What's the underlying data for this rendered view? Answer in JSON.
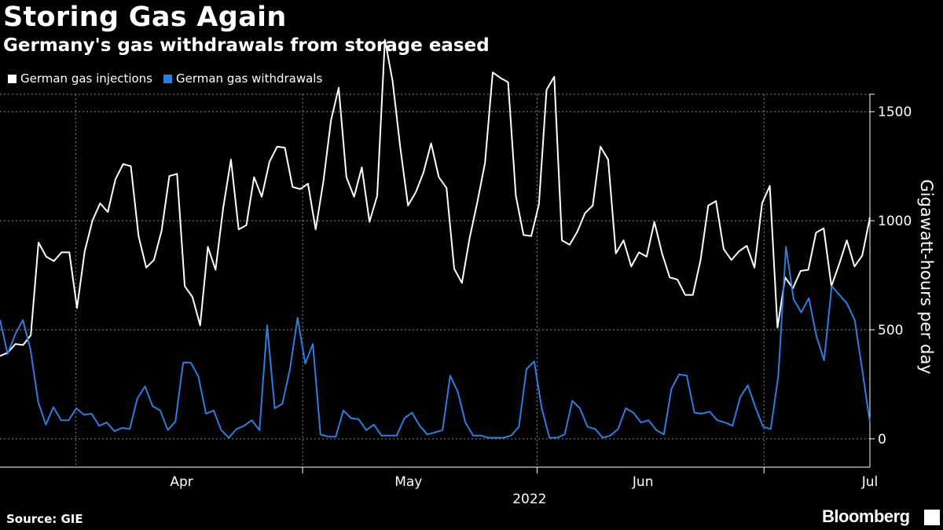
{
  "header": {
    "title": "Storing Gas Again",
    "subtitle": "Germany's gas withdrawals from storage eased"
  },
  "footer": {
    "source": "Source: GIE",
    "brand": "Bloomberg"
  },
  "chart_data": {
    "type": "line",
    "ylabel": "Gigawatt-hours per day",
    "ylim": [
      -130,
      1580
    ],
    "yticks": [
      0,
      500,
      1000,
      1500
    ],
    "grid": true,
    "legend_placement": "top-left",
    "xlabel": "2022",
    "month_labels": [
      "Apr",
      "May",
      "Jun",
      "Jul"
    ],
    "x_start": "2022-03-22",
    "x_end": "2022-07-15",
    "series": [
      {
        "name": "German gas injections",
        "color": "#ffffff",
        "values": [
          380,
          395,
          435,
          430,
          475,
          900,
          835,
          815,
          855,
          855,
          600,
          860,
          1000,
          1080,
          1040,
          1190,
          1260,
          1250,
          930,
          785,
          820,
          955,
          1205,
          1215,
          700,
          650,
          520,
          880,
          775,
          1060,
          1280,
          960,
          980,
          1200,
          1110,
          1270,
          1340,
          1335,
          1155,
          1145,
          1170,
          960,
          1180,
          1460,
          1610,
          1200,
          1110,
          1245,
          995,
          1115,
          1830,
          1640,
          1335,
          1070,
          1130,
          1220,
          1355,
          1200,
          1150,
          780,
          715,
          920,
          1085,
          1265,
          1680,
          1655,
          1635,
          1115,
          935,
          930,
          1075,
          1600,
          1660,
          910,
          890,
          950,
          1035,
          1070,
          1340,
          1280,
          850,
          910,
          790,
          855,
          835,
          995,
          850,
          740,
          730,
          660,
          660,
          820,
          1070,
          1090,
          870,
          820,
          860,
          885,
          785,
          1080,
          1160,
          510,
          740,
          690,
          770,
          775,
          945,
          965,
          700,
          800,
          910,
          790,
          840,
          1015
        ]
      },
      {
        "name": "German gas withdrawals",
        "color": "#2c7fe0",
        "values": [
          545,
          390,
          480,
          545,
          410,
          170,
          65,
          145,
          85,
          85,
          140,
          110,
          115,
          60,
          75,
          35,
          50,
          45,
          185,
          240,
          150,
          130,
          40,
          80,
          350,
          350,
          285,
          115,
          130,
          40,
          5,
          45,
          60,
          85,
          40,
          520,
          140,
          160,
          320,
          555,
          345,
          435,
          20,
          10,
          10,
          130,
          95,
          90,
          40,
          65,
          15,
          15,
          15,
          95,
          120,
          60,
          20,
          30,
          40,
          290,
          215,
          75,
          15,
          15,
          5,
          5,
          5,
          15,
          55,
          320,
          355,
          140,
          5,
          5,
          20,
          175,
          140,
          55,
          45,
          5,
          15,
          45,
          140,
          120,
          75,
          85,
          40,
          20,
          230,
          295,
          290,
          120,
          115,
          125,
          85,
          75,
          60,
          190,
          245,
          145,
          55,
          45,
          290,
          880,
          640,
          580,
          645,
          470,
          360,
          700,
          660,
          620,
          545,
          315,
          75
        ]
      }
    ]
  }
}
